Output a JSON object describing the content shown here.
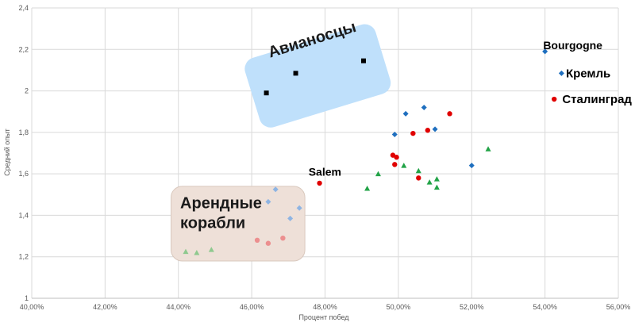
{
  "chart_data": {
    "type": "scatter",
    "title": "",
    "xlabel": "Процент побед",
    "ylabel": "Средний опыт",
    "xlim": [
      0.4,
      0.56
    ],
    "ylim": [
      1.0,
      2.4
    ],
    "x_ticks": [
      0.4,
      0.42,
      0.44,
      0.46,
      0.48,
      0.5,
      0.52,
      0.54,
      0.56
    ],
    "x_tick_labels": [
      "40,00%",
      "42,00%",
      "44,00%",
      "46,00%",
      "48,00%",
      "50,00%",
      "52,00%",
      "54,00%",
      "56,00%"
    ],
    "y_ticks": [
      1.0,
      1.2,
      1.4,
      1.6,
      1.8,
      2.0,
      2.2,
      2.4
    ],
    "y_tick_labels": [
      "1",
      "1,2",
      "1,4",
      "1,6",
      "1,8",
      "2",
      "2,2",
      "2,4"
    ],
    "grid": true,
    "series": [
      {
        "marker": "square",
        "color": "#000000",
        "points": [
          [
            0.464,
            1.99
          ],
          [
            0.472,
            2.085
          ],
          [
            0.4905,
            2.145
          ]
        ]
      },
      {
        "marker": "diamond",
        "color": "#1f6fbf",
        "points": [
          [
            0.54,
            2.19
          ],
          [
            0.5445,
            2.085
          ],
          [
            0.499,
            1.79
          ],
          [
            0.502,
            1.89
          ],
          [
            0.507,
            1.92
          ],
          [
            0.51,
            1.815
          ],
          [
            0.52,
            1.64
          ]
        ]
      },
      {
        "marker": "circle",
        "color": "#e00000",
        "points": [
          [
            0.5425,
            1.96
          ],
          [
            0.4785,
            1.555
          ],
          [
            0.4985,
            1.69
          ],
          [
            0.4995,
            1.68
          ],
          [
            0.499,
            1.645
          ],
          [
            0.504,
            1.795
          ],
          [
            0.508,
            1.81
          ],
          [
            0.514,
            1.89
          ],
          [
            0.5055,
            1.58
          ]
        ]
      },
      {
        "marker": "triangle",
        "color": "#22a347",
        "points": [
          [
            0.4945,
            1.6
          ],
          [
            0.5015,
            1.64
          ],
          [
            0.5055,
            1.615
          ],
          [
            0.4915,
            1.53
          ],
          [
            0.5085,
            1.56
          ],
          [
            0.5105,
            1.575
          ],
          [
            0.5105,
            1.535
          ],
          [
            0.5245,
            1.72
          ]
        ]
      },
      {
        "marker": "diamond",
        "color": "#8eb4e3",
        "points": [
          [
            0.4665,
            1.525
          ],
          [
            0.4645,
            1.465
          ],
          [
            0.473,
            1.435
          ],
          [
            0.4705,
            1.385
          ]
        ]
      },
      {
        "marker": "circle",
        "color": "#ec8f8f",
        "points": [
          [
            0.4615,
            1.28
          ],
          [
            0.4645,
            1.265
          ],
          [
            0.4685,
            1.29
          ]
        ]
      },
      {
        "marker": "triangle",
        "color": "#8fc98f",
        "points": [
          [
            0.442,
            1.225
          ],
          [
            0.445,
            1.22
          ],
          [
            0.449,
            1.235
          ]
        ]
      }
    ],
    "annotations": [
      {
        "text": "Bourgogne",
        "x": 0.5395,
        "y": 2.22,
        "size": 14,
        "anchor": "start"
      },
      {
        "text": "Кремль",
        "x": 0.5457,
        "y": 2.085,
        "size": 15,
        "anchor": "start"
      },
      {
        "text": "Сталинград",
        "x": 0.5447,
        "y": 1.96,
        "size": 15,
        "anchor": "start"
      },
      {
        "text": "Salem",
        "x": 0.4755,
        "y": 1.61,
        "size": 14,
        "anchor": "start"
      }
    ],
    "groups": [
      {
        "label_lines": [
          "Авианосцы"
        ],
        "fill": "#bfe0fb",
        "stroke": "#bfe0fb",
        "box": [
          0.4595,
          0.4965,
          1.9,
          2.245
        ],
        "rotate": -17,
        "label_x": 0.465,
        "label_y": 2.16,
        "size": 20
      },
      {
        "label_lines": [
          "Арендные",
          "корабли"
        ],
        "fill": "#eee0d8",
        "stroke": "#d9c8bd",
        "box": [
          0.438,
          0.4745,
          1.18,
          1.54
        ],
        "rotate": 0,
        "label_x": 0.4405,
        "label_y": 1.435,
        "size": 20
      }
    ]
  }
}
